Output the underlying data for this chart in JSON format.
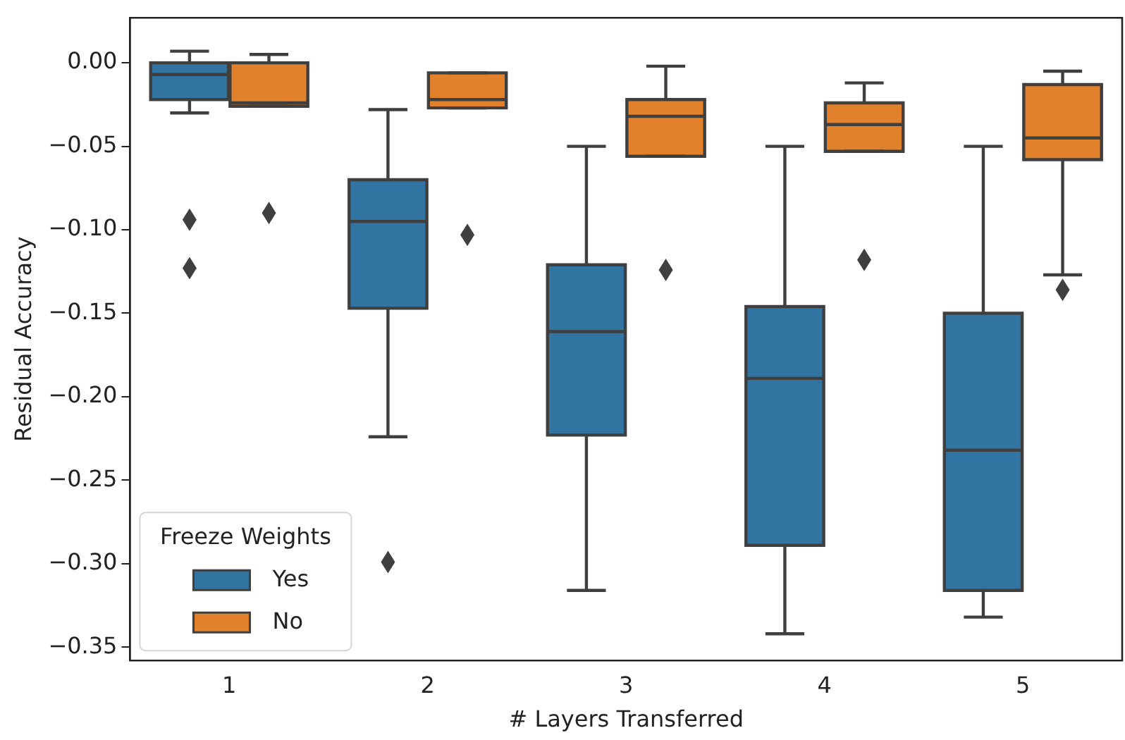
{
  "chart_data": {
    "type": "box",
    "xlabel": "# Layers Transferred",
    "ylabel": "Residual Accuracy",
    "legend_title": "Freeze Weights",
    "legend": "lower left",
    "grid": false,
    "marker": "diamond",
    "categories": [
      "1",
      "2",
      "3",
      "4",
      "5"
    ],
    "ylim": [
      -0.358,
      0.027
    ],
    "yticks": [
      {
        "value": 0,
        "label": "0.00"
      },
      {
        "value": -0.05,
        "label": "−0.05"
      },
      {
        "value": -0.1,
        "label": "−0.10"
      },
      {
        "value": -0.15,
        "label": "−0.15"
      },
      {
        "value": -0.2,
        "label": "−0.20"
      },
      {
        "value": -0.25,
        "label": "−0.25"
      },
      {
        "value": -0.3,
        "label": "−0.30"
      },
      {
        "value": -0.35,
        "label": "−0.35"
      }
    ],
    "series": [
      {
        "name": "Yes",
        "color": "#3274a1",
        "boxes": [
          {
            "low": -0.03,
            "q1": -0.022,
            "median": -0.007,
            "q3": 0.0,
            "high": 0.007,
            "outliers": [
              -0.094,
              -0.123
            ]
          },
          {
            "low": -0.224,
            "q1": -0.147,
            "median": -0.095,
            "q3": -0.07,
            "high": -0.028,
            "outliers": [
              -0.299
            ]
          },
          {
            "low": -0.316,
            "q1": -0.223,
            "median": -0.161,
            "q3": -0.121,
            "high": -0.05
          },
          {
            "low": -0.342,
            "q1": -0.289,
            "median": -0.189,
            "q3": -0.146,
            "high": -0.05
          },
          {
            "low": -0.332,
            "q1": -0.316,
            "median": -0.232,
            "q3": -0.15,
            "high": -0.05
          }
        ]
      },
      {
        "name": "No",
        "color": "#e1812c",
        "boxes": [
          {
            "low": -0.026,
            "q1": -0.026,
            "median": -0.024,
            "q3": 0.0,
            "high": 0.005,
            "outliers": [
              -0.09
            ]
          },
          {
            "low": -0.027,
            "q1": -0.027,
            "median": -0.022,
            "q3": -0.006,
            "high": -0.006,
            "outliers": [
              -0.103
            ]
          },
          {
            "low": -0.056,
            "q1": -0.056,
            "median": -0.032,
            "q3": -0.022,
            "high": -0.002,
            "outliers": [
              -0.124
            ]
          },
          {
            "low": -0.053,
            "q1": -0.053,
            "median": -0.037,
            "q3": -0.024,
            "high": -0.012,
            "outliers": [
              -0.118
            ]
          },
          {
            "low": -0.127,
            "q1": -0.058,
            "median": -0.045,
            "q3": -0.013,
            "high": -0.005,
            "outliers": [
              -0.136
            ]
          }
        ]
      }
    ]
  }
}
